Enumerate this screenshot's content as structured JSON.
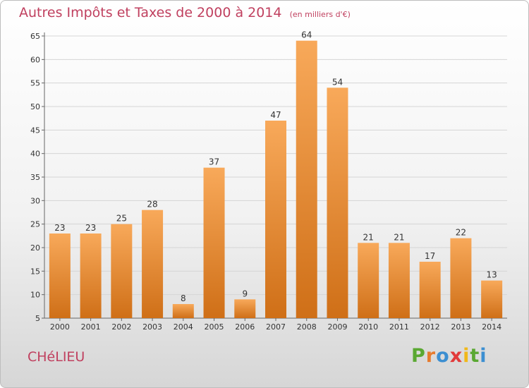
{
  "header": {
    "title": "Autres Impôts et Taxes de 2000 à 2014",
    "unit": "(en milliers d'€)"
  },
  "footer": {
    "commune": "CHéLIEU",
    "logo": [
      "P",
      "r",
      "o",
      "x",
      "i",
      "t",
      "i"
    ],
    "logo_colors": [
      "#5aa832",
      "#e67b2f",
      "#3c8fd1",
      "#e23a3a",
      "#f0b81a",
      "#5aa832",
      "#3c8fd1"
    ]
  },
  "colors": {
    "bar_light": "#f8a95a",
    "bar_dark": "#cf6f17",
    "grid": "#d5d5d5",
    "axis": "#666666",
    "title": "#c0405f"
  },
  "chart_data": {
    "type": "bar",
    "title": "Autres Impôts et Taxes de 2000 à 2014",
    "subtitle": "(en milliers d'€)",
    "xlabel": "",
    "ylabel": "",
    "categories": [
      "2000",
      "2001",
      "2002",
      "2003",
      "2004",
      "2005",
      "2006",
      "2007",
      "2008",
      "2009",
      "2010",
      "2011",
      "2012",
      "2013",
      "2014"
    ],
    "values": [
      23,
      23,
      25,
      28,
      8,
      37,
      9,
      47,
      64,
      54,
      21,
      21,
      17,
      22,
      13
    ],
    "ylim": [
      5,
      65
    ],
    "yticks": [
      5,
      10,
      15,
      20,
      25,
      30,
      35,
      40,
      45,
      50,
      55,
      60,
      65
    ],
    "grid": true,
    "legend": "none"
  }
}
